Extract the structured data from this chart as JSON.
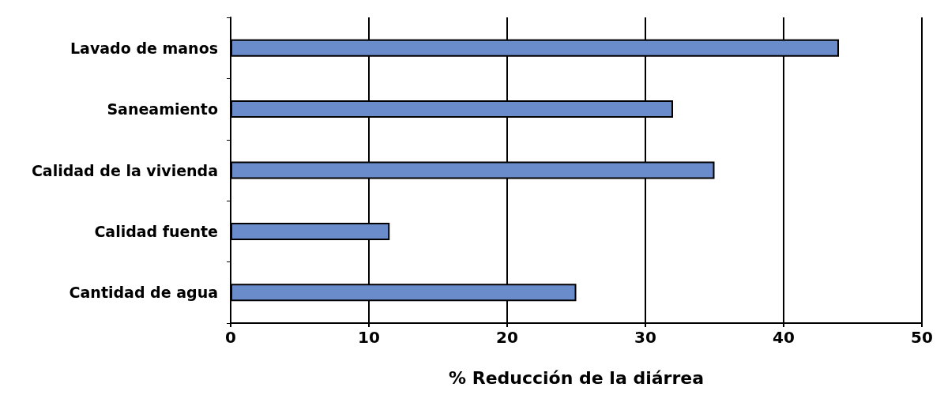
{
  "chart_data": {
    "type": "bar",
    "orientation": "horizontal",
    "xlabel": "% Reducción de la diárrea",
    "categories": [
      "Lavado de manos",
      "Saneamiento",
      "Calidad de la vivienda",
      "Calidad fuente",
      "Cantidad de agua"
    ],
    "values": [
      44,
      32,
      35,
      11.5,
      25
    ],
    "color": "#6b8ccb",
    "xlim": [
      0,
      50
    ],
    "xticks": [
      0,
      10,
      20,
      30,
      40,
      50
    ],
    "grid": "x"
  }
}
